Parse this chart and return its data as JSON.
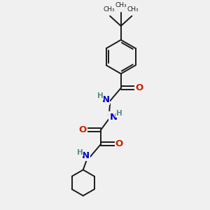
{
  "bg_color": "#f0f0f0",
  "bond_color": "#1a1a1a",
  "N_color": "#0000cc",
  "O_color": "#cc2200",
  "H_color": "#5a8a8a",
  "line_width": 1.4,
  "font_size_atom": 8.5,
  "fig_size": [
    3.0,
    3.0
  ],
  "dpi": 100,
  "xlim": [
    0,
    10
  ],
  "ylim": [
    0,
    10
  ]
}
